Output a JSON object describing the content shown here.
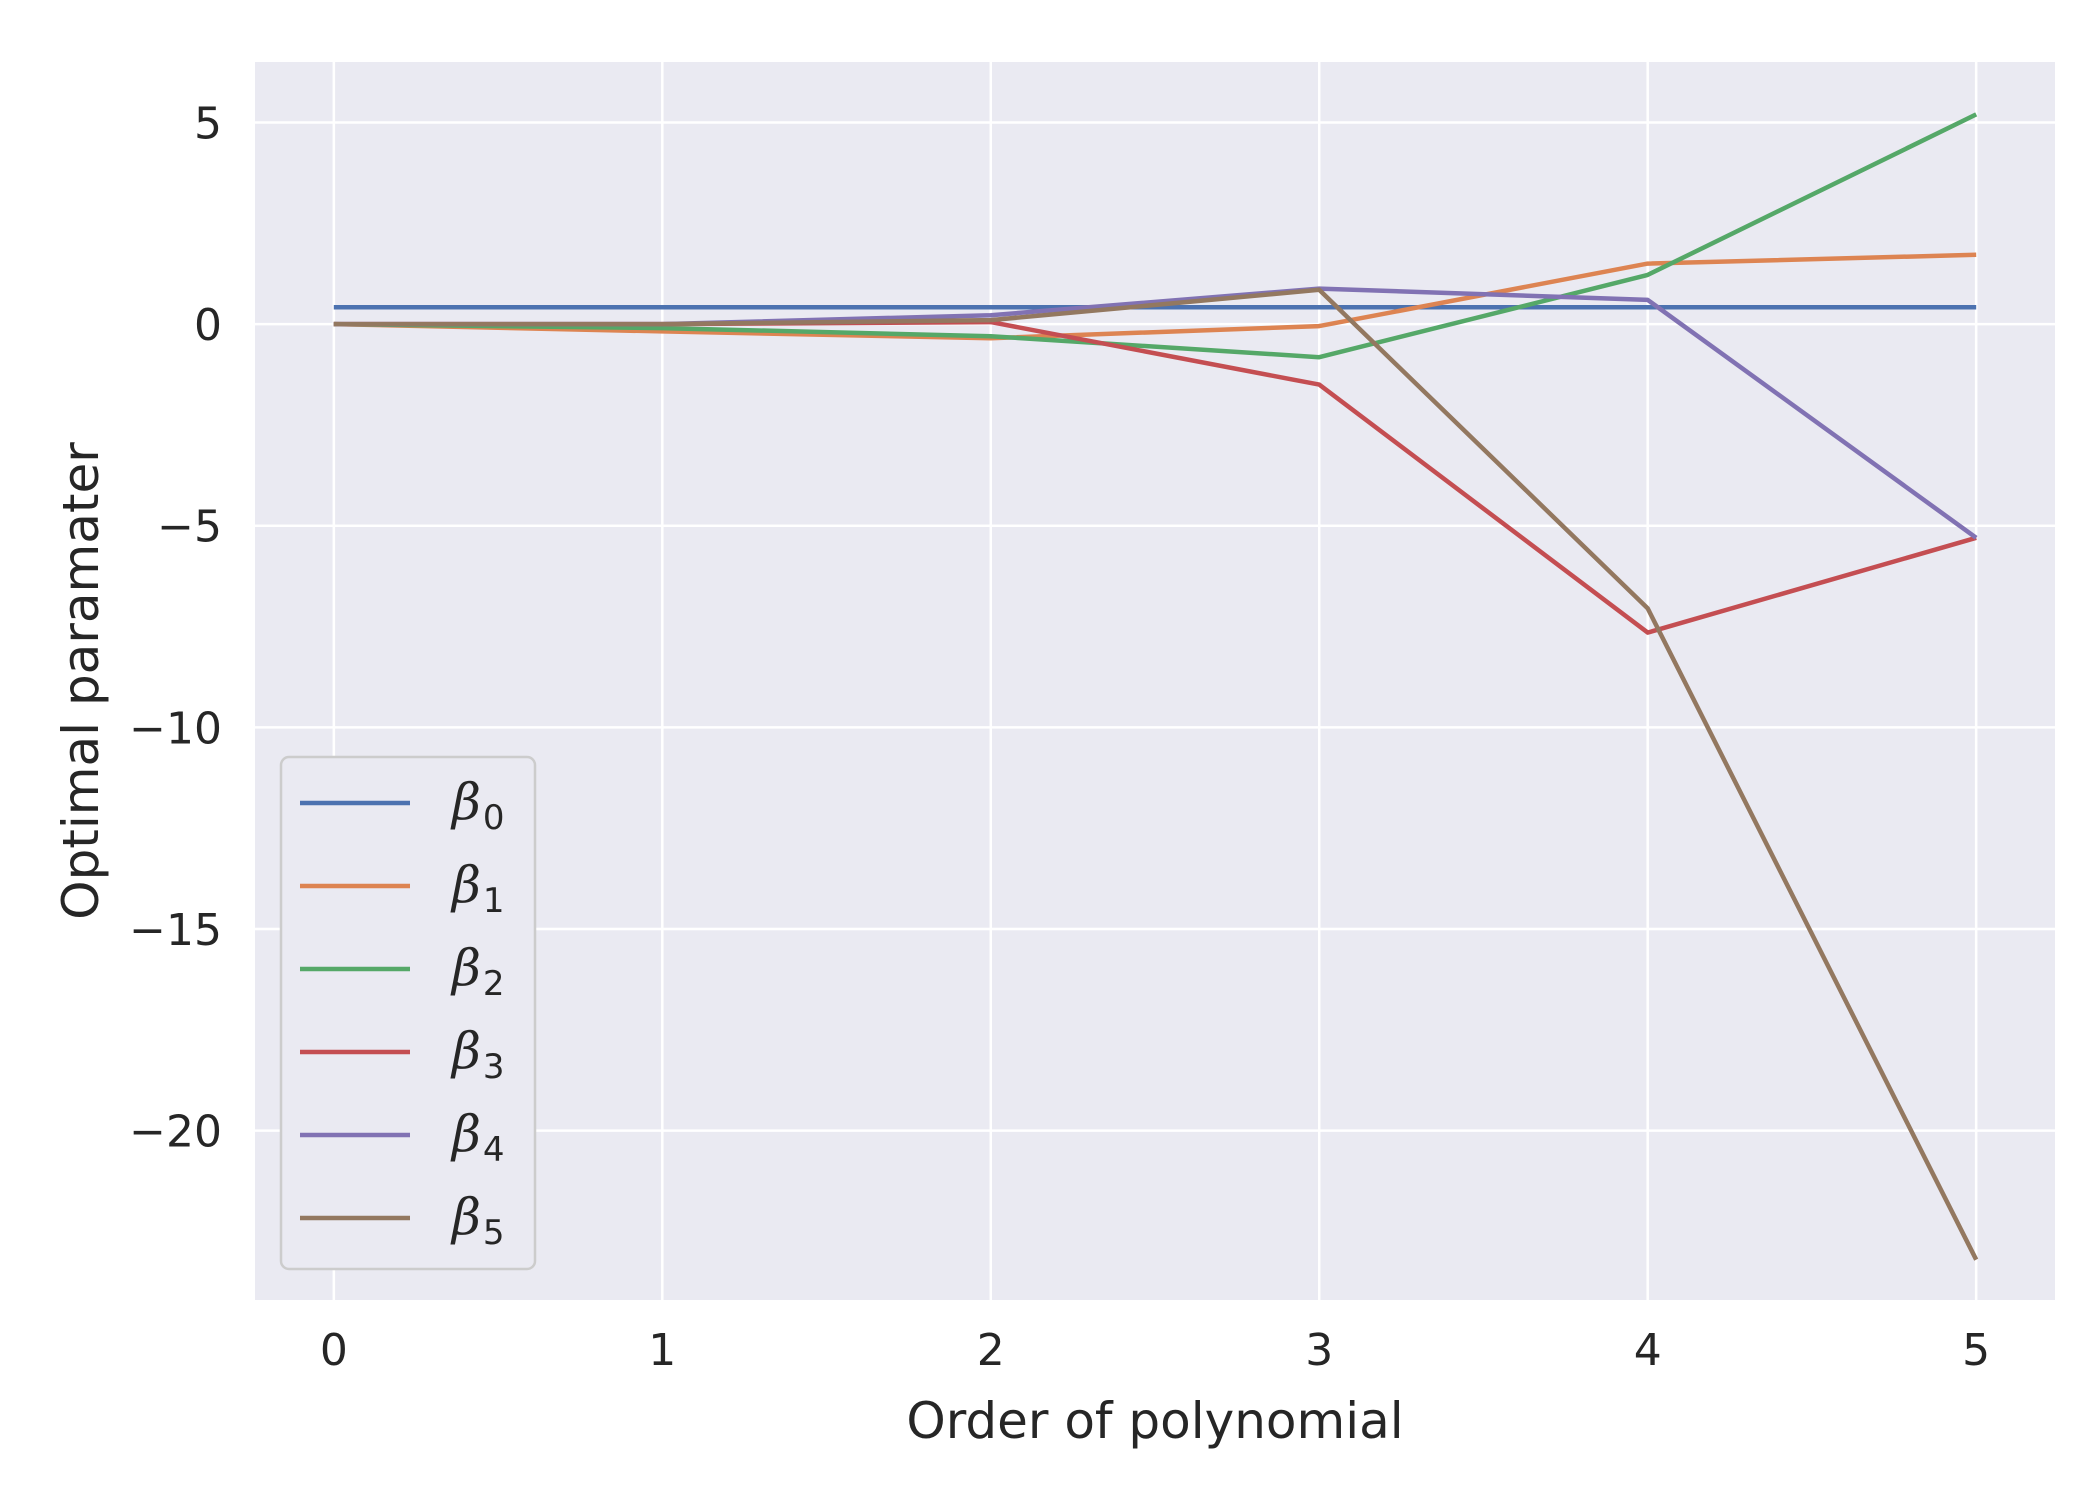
{
  "chart_data": {
    "type": "line",
    "title": "",
    "xlabel": "Order of polynomial",
    "ylabel": "Optimal paramater",
    "x": [
      0,
      1,
      2,
      3,
      4,
      5
    ],
    "xlim": [
      -0.24,
      5.24
    ],
    "ylim": [
      -24.2,
      6.5
    ],
    "xticks": [
      0,
      1,
      2,
      3,
      4,
      5
    ],
    "yticks": [
      5,
      0,
      -5,
      -10,
      -15,
      -20
    ],
    "ytick_labels": [
      "5",
      "0",
      "−5",
      "−10",
      "−15",
      "−20"
    ],
    "grid": true,
    "legend_position": "lower-left",
    "series": [
      {
        "name": "β",
        "sub": "0",
        "color": "#4c72b0",
        "x": [
          0,
          1,
          2,
          3,
          4,
          5
        ],
        "values": [
          0.42,
          0.42,
          0.42,
          0.42,
          0.42,
          0.42
        ]
      },
      {
        "name": "β",
        "sub": "1",
        "color": "#dd8452",
        "x": [
          0,
          1,
          2,
          3,
          4,
          5
        ],
        "values": [
          0.0,
          -0.18,
          -0.35,
          -0.05,
          1.5,
          1.72
        ]
      },
      {
        "name": "β",
        "sub": "2",
        "color": "#55a868",
        "x": [
          0,
          1,
          2,
          3,
          4,
          5
        ],
        "values": [
          0.0,
          -0.1,
          -0.3,
          -0.82,
          1.22,
          5.2
        ]
      },
      {
        "name": "β",
        "sub": "3",
        "color": "#c44e52",
        "x": [
          0,
          1,
          2,
          3,
          4,
          5
        ],
        "values": [
          0.0,
          0.0,
          0.05,
          -1.5,
          -7.65,
          -5.3
        ]
      },
      {
        "name": "β",
        "sub": "4",
        "color": "#8172b3",
        "x": [
          0,
          1,
          2,
          3,
          4,
          5
        ],
        "values": [
          0.0,
          0.0,
          0.22,
          0.88,
          0.6,
          -5.3
        ]
      },
      {
        "name": "β",
        "sub": "5",
        "color": "#937860",
        "x": [
          0,
          1,
          2,
          3,
          4,
          5
        ],
        "values": [
          0.0,
          0.0,
          0.1,
          0.85,
          -7.05,
          -23.2
        ]
      }
    ]
  }
}
